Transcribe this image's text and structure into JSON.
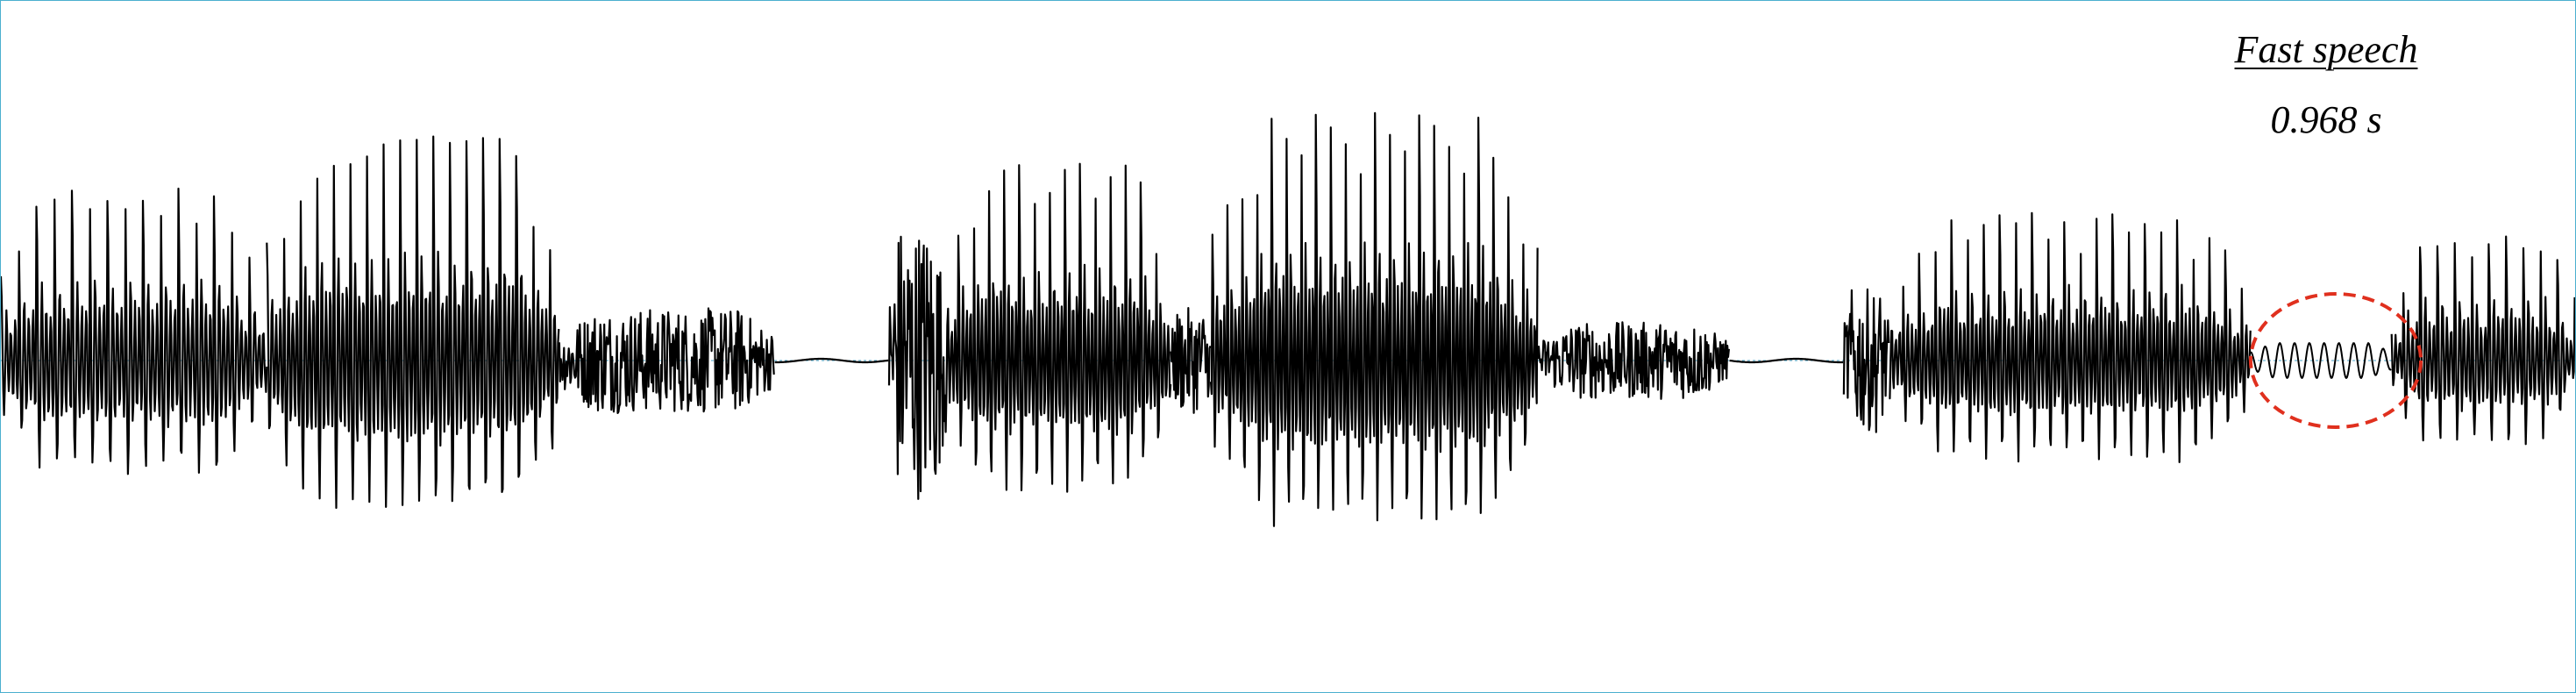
{
  "chart_data": {
    "type": "line",
    "title": "Fast speech",
    "annotation": "0.968 s",
    "xlabel": "",
    "ylabel": "",
    "duration_seconds": 0.968,
    "grid": false,
    "legend": "none",
    "series": [
      {
        "values": [],
        "segments": [
          {
            "start": 0.0,
            "end": 0.1,
            "type": "voiced",
            "amp": 0.62,
            "f0": 150
          },
          {
            "start": 0.1,
            "end": 0.21,
            "type": "voiced",
            "amp": 0.83,
            "f0": 160
          },
          {
            "start": 0.21,
            "end": 0.291,
            "type": "fricative",
            "amp": 0.15
          },
          {
            "start": 0.291,
            "end": 0.334,
            "type": "silence",
            "amp": 0.01
          },
          {
            "start": 0.334,
            "end": 0.355,
            "type": "burst",
            "amp": 0.33
          },
          {
            "start": 0.355,
            "end": 0.44,
            "type": "voiced",
            "amp": 0.72,
            "f0": 175
          },
          {
            "start": 0.44,
            "end": 0.455,
            "type": "fricative",
            "amp": 0.15
          },
          {
            "start": 0.455,
            "end": 0.578,
            "type": "voiced",
            "amp": 0.9,
            "f0": 180
          },
          {
            "start": 0.578,
            "end": 0.65,
            "type": "fricative",
            "amp": 0.11
          },
          {
            "start": 0.65,
            "end": 0.693,
            "type": "silence",
            "amp": 0.01
          },
          {
            "start": 0.693,
            "end": 0.71,
            "type": "burst",
            "amp": 0.17
          },
          {
            "start": 0.71,
            "end": 0.846,
            "type": "voiced",
            "amp": 0.55,
            "f0": 165
          },
          {
            "start": 0.846,
            "end": 0.899,
            "type": "weak",
            "amp": 0.05,
            "f0": 180
          },
          {
            "start": 0.899,
            "end": 0.968,
            "type": "voiced",
            "amp": 0.45,
            "f0": 155
          }
        ]
      }
    ],
    "xlim": [
      0,
      0.968
    ],
    "ylim": [
      -1,
      1
    ],
    "highlight": {
      "shape": "ellipse",
      "color": "#e0301e",
      "style": "dashed",
      "start": 0.846,
      "end": 0.91
    },
    "colors": {
      "waveform": "#000000",
      "baseline": "#4aa6c8"
    }
  }
}
